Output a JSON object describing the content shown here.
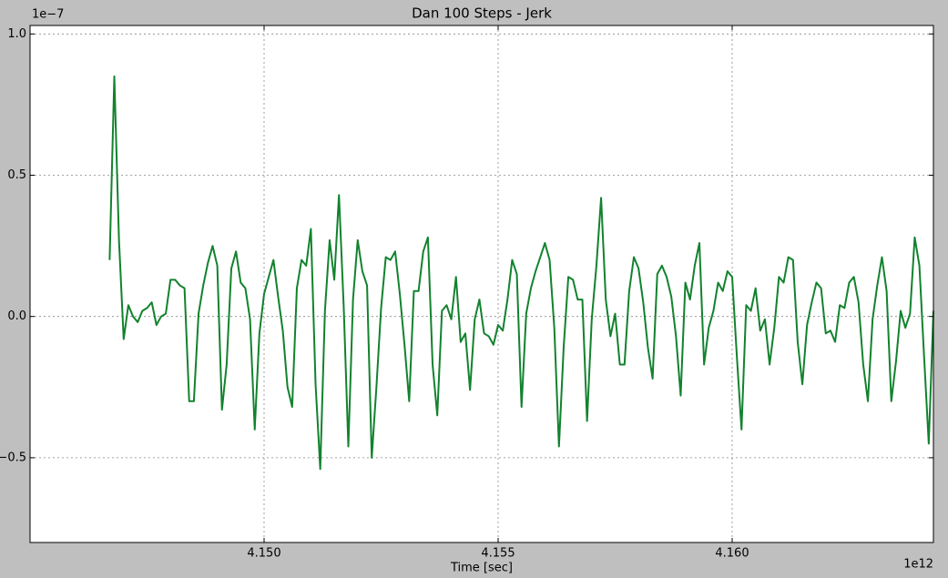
{
  "chart_data": {
    "type": "line",
    "title": "Dan 100 Steps - Jerk",
    "xlabel": "Time [sec]",
    "x_offset_label": "1e12",
    "y_offset_label": "1e−7",
    "color": "#12822e",
    "grid": true,
    "xlim": [
      4.145,
      4.1643
    ],
    "ylim": [
      -0.8,
      1.03
    ],
    "xticks": [
      {
        "value": 4.15,
        "label": "4.150"
      },
      {
        "value": 4.155,
        "label": "4.155"
      },
      {
        "value": 4.16,
        "label": "4.160"
      }
    ],
    "yticks": [
      {
        "value": -0.5,
        "label": "−0.5"
      },
      {
        "value": 0,
        "label": "0.0"
      },
      {
        "value": 0.5,
        "label": "0.5"
      },
      {
        "value": 1.0,
        "label": "1.0"
      }
    ],
    "x": [
      4.1467,
      4.1468,
      4.1469,
      4.147,
      4.1471,
      4.1472,
      4.1473,
      4.1474,
      4.1475,
      4.1476,
      4.1477,
      4.1478,
      4.1479,
      4.148,
      4.1481,
      4.1482,
      4.1483,
      4.1484,
      4.1485,
      4.1486,
      4.1487,
      4.1488,
      4.1489,
      4.149,
      4.1491,
      4.1492,
      4.1493,
      4.1494,
      4.1495,
      4.1496,
      4.1497,
      4.1498,
      4.1499,
      4.15,
      4.1501,
      4.1502,
      4.1503,
      4.1504,
      4.1505,
      4.1506,
      4.1507,
      4.1508,
      4.1509,
      4.151,
      4.1511,
      4.1512,
      4.1513,
      4.1514,
      4.1515,
      4.1516,
      4.1517,
      4.1518,
      4.1519,
      4.152,
      4.1521,
      4.1522,
      4.1523,
      4.1524,
      4.1525,
      4.1526,
      4.1527,
      4.1528,
      4.1529,
      4.153,
      4.1531,
      4.1532,
      4.1533,
      4.1534,
      4.1535,
      4.1536,
      4.1537,
      4.1538,
      4.1539,
      4.154,
      4.1541,
      4.1542,
      4.1543,
      4.1544,
      4.1545,
      4.1546,
      4.1547,
      4.1548,
      4.1549,
      4.155,
      4.1551,
      4.1552,
      4.1553,
      4.1554,
      4.1555,
      4.1556,
      4.1557,
      4.1558,
      4.1559,
      4.156,
      4.1561,
      4.1562,
      4.1563,
      4.1564,
      4.1565,
      4.1566,
      4.1567,
      4.1568,
      4.1569,
      4.157,
      4.1571,
      4.1572,
      4.1573,
      4.1574,
      4.1575,
      4.1576,
      4.1577,
      4.1578,
      4.1579,
      4.158,
      4.1581,
      4.1582,
      4.1583,
      4.1584,
      4.1585,
      4.1586,
      4.1587,
      4.1588,
      4.1589,
      4.159,
      4.1591,
      4.1592,
      4.1593,
      4.1594,
      4.1595,
      4.1596,
      4.1597,
      4.1598,
      4.1599,
      4.16,
      4.1601,
      4.1602,
      4.1603,
      4.1604,
      4.1605,
      4.1606,
      4.1607,
      4.1608,
      4.1609,
      4.161,
      4.1611,
      4.1612,
      4.1613,
      4.1614,
      4.1615,
      4.1616,
      4.1617,
      4.1618,
      4.1619,
      4.162,
      4.1621,
      4.1622,
      4.1623,
      4.1624,
      4.1625,
      4.1626,
      4.1627,
      4.1628,
      4.1629,
      4.163,
      4.1631,
      4.1632,
      4.1633,
      4.1634,
      4.1635,
      4.1636,
      4.1637,
      4.1638,
      4.1639,
      4.164,
      4.1641,
      4.1642,
      4.1643
    ],
    "values": [
      0.2,
      0.85,
      0.27,
      -0.08,
      0.04,
      0.0,
      -0.02,
      0.02,
      0.03,
      0.05,
      -0.03,
      0.0,
      0.01,
      0.13,
      0.13,
      0.11,
      0.1,
      -0.3,
      -0.3,
      0.01,
      0.11,
      0.19,
      0.25,
      0.18,
      -0.33,
      -0.17,
      0.17,
      0.23,
      0.12,
      0.1,
      -0.01,
      -0.4,
      -0.06,
      0.08,
      0.14,
      0.2,
      0.07,
      -0.05,
      -0.25,
      -0.32,
      0.1,
      0.2,
      0.18,
      0.31,
      -0.24,
      -0.54,
      0.02,
      0.27,
      0.13,
      0.43,
      0.04,
      -0.46,
      0.06,
      0.27,
      0.16,
      0.11,
      -0.5,
      -0.25,
      0.03,
      0.21,
      0.2,
      0.23,
      0.08,
      -0.1,
      -0.3,
      0.09,
      0.09,
      0.23,
      0.28,
      -0.17,
      -0.35,
      0.02,
      0.04,
      -0.01,
      0.14,
      -0.09,
      -0.06,
      -0.26,
      -0.01,
      0.06,
      -0.06,
      -0.07,
      -0.1,
      -0.03,
      -0.05,
      0.06,
      0.2,
      0.15,
      -0.32,
      0.01,
      0.1,
      0.16,
      0.21,
      0.26,
      0.2,
      -0.04,
      -0.46,
      -0.11,
      0.14,
      0.13,
      0.06,
      0.06,
      -0.37,
      -0.01,
      0.18,
      0.42,
      0.06,
      -0.07,
      0.01,
      -0.17,
      -0.17,
      0.09,
      0.21,
      0.17,
      0.05,
      -0.11,
      -0.22,
      0.15,
      0.18,
      0.14,
      0.07,
      -0.07,
      -0.28,
      0.12,
      0.06,
      0.18,
      0.26,
      -0.17,
      -0.04,
      0.02,
      0.12,
      0.09,
      0.16,
      0.14,
      -0.14,
      -0.4,
      0.04,
      0.02,
      0.1,
      -0.05,
      -0.01,
      -0.17,
      -0.04,
      0.14,
      0.12,
      0.21,
      0.2,
      -0.09,
      -0.24,
      -0.03,
      0.05,
      0.12,
      0.1,
      -0.06,
      -0.05,
      -0.09,
      0.04,
      0.03,
      0.12,
      0.14,
      0.05,
      -0.17,
      -0.3,
      -0.01,
      0.11,
      0.21,
      0.09,
      -0.3,
      -0.16,
      0.02,
      -0.04,
      0.01,
      0.28,
      0.18,
      -0.14,
      -0.45,
      0.02
    ]
  }
}
